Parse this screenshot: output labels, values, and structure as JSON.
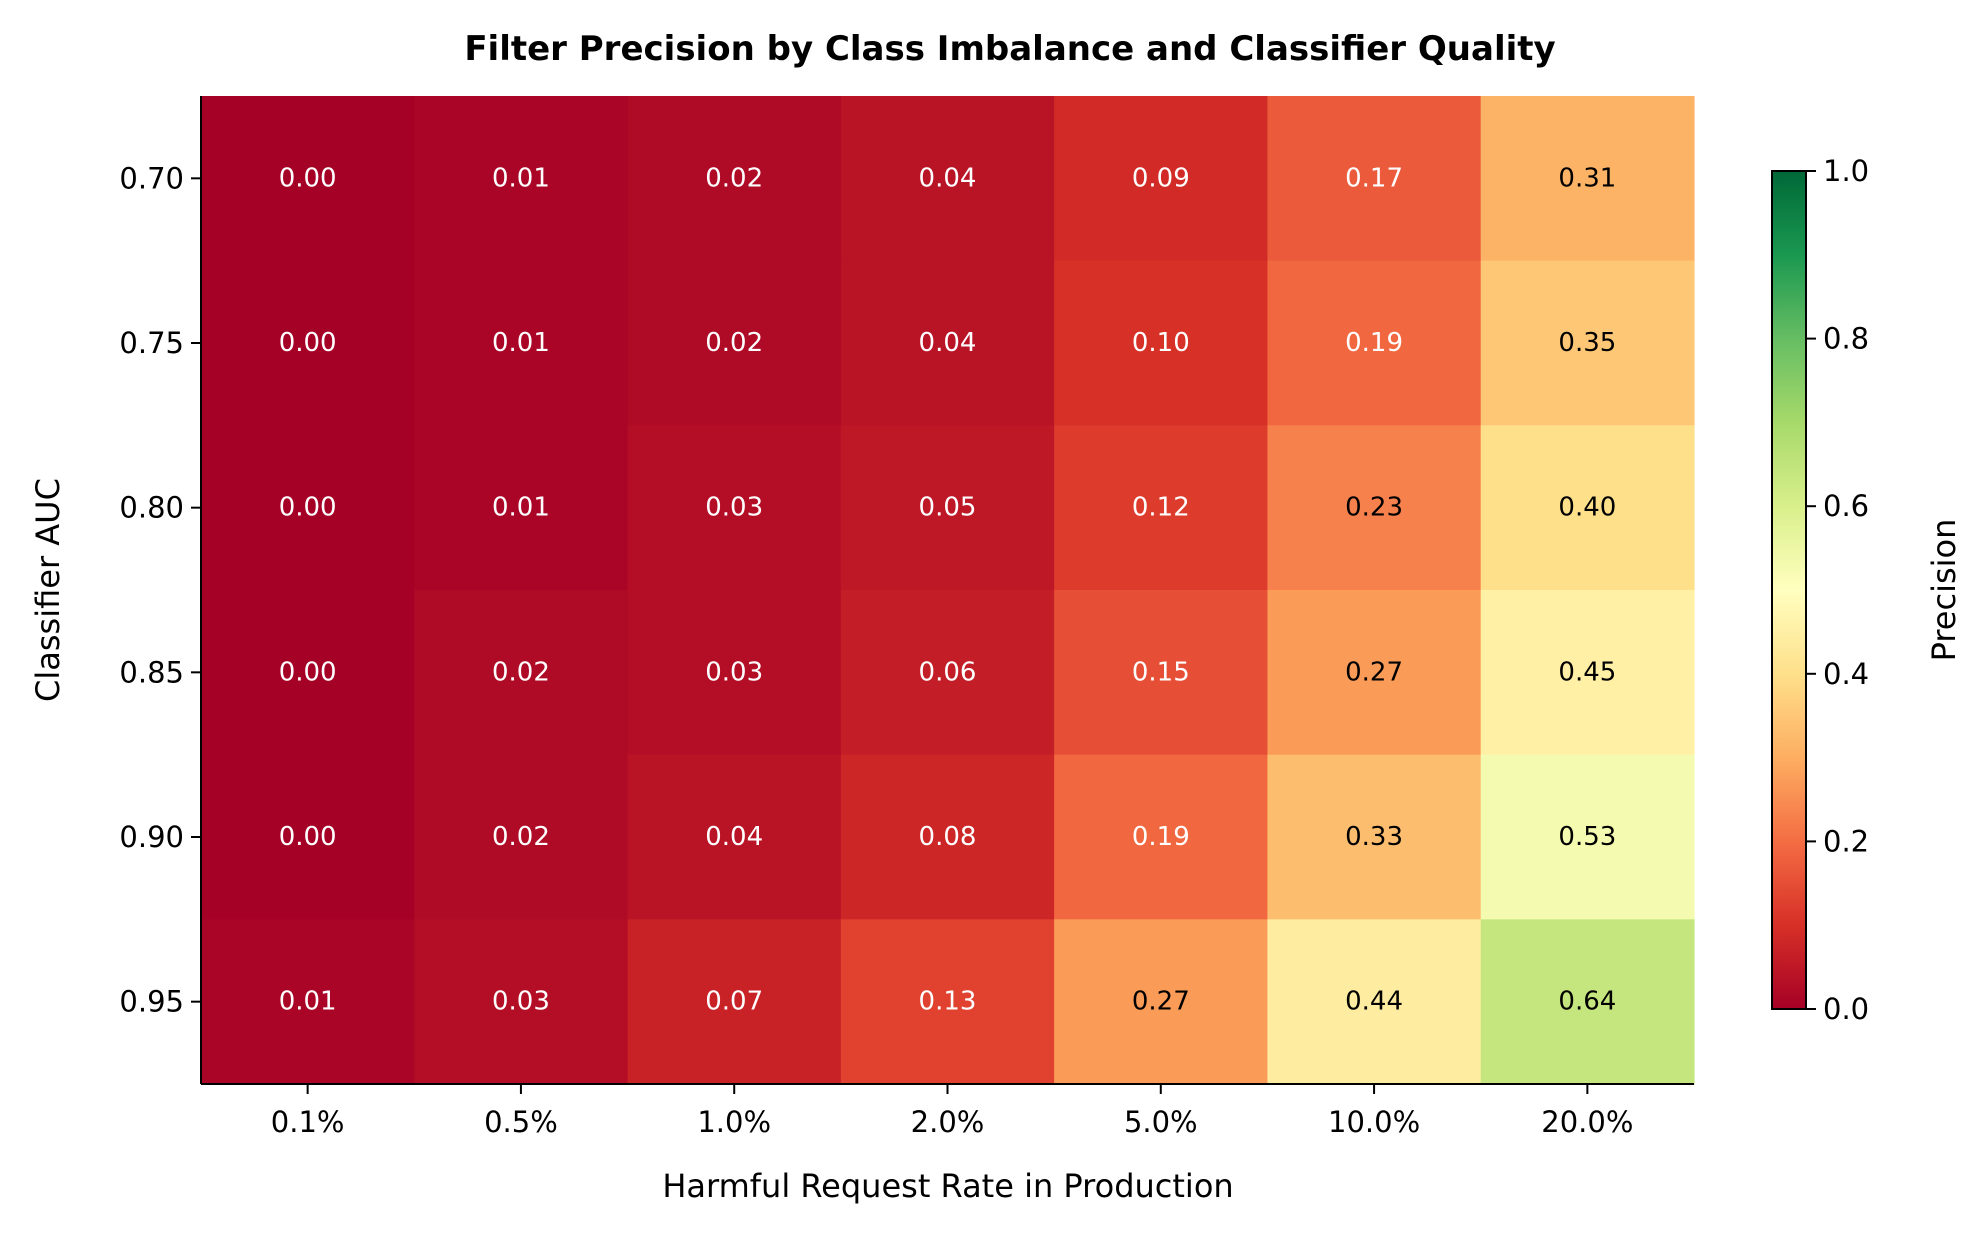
{
  "chart_data": {
    "type": "heatmap",
    "title": "Filter Precision by Class Imbalance and Classifier Quality",
    "xlabel": "Harmful Request Rate in Production",
    "ylabel": "Classifier AUC",
    "x_categories": [
      "0.1%",
      "0.5%",
      "1.0%",
      "2.0%",
      "5.0%",
      "10.0%",
      "20.0%"
    ],
    "y_categories": [
      "0.70",
      "0.75",
      "0.80",
      "0.85",
      "0.90",
      "0.95"
    ],
    "values": [
      [
        0.0,
        0.01,
        0.02,
        0.04,
        0.09,
        0.17,
        0.31
      ],
      [
        0.0,
        0.01,
        0.02,
        0.04,
        0.1,
        0.19,
        0.35
      ],
      [
        0.0,
        0.01,
        0.03,
        0.05,
        0.12,
        0.23,
        0.4
      ],
      [
        0.0,
        0.02,
        0.03,
        0.06,
        0.15,
        0.27,
        0.45
      ],
      [
        0.0,
        0.02,
        0.04,
        0.08,
        0.19,
        0.33,
        0.53
      ],
      [
        0.01,
        0.03,
        0.07,
        0.13,
        0.27,
        0.44,
        0.64
      ]
    ],
    "value_format_decimals": 2,
    "colormap": "RdYlGn",
    "colormap_stops": [
      "#a50026",
      "#d73027",
      "#f46d43",
      "#fdae61",
      "#fee08b",
      "#ffffbf",
      "#d9ef8b",
      "#a6d96a",
      "#66bd63",
      "#1a9850",
      "#006837"
    ],
    "colorbar": {
      "label": "Precision",
      "range": [
        0.0,
        1.0
      ],
      "ticks": [
        "0.0",
        "0.2",
        "0.4",
        "0.6",
        "0.8",
        "1.0"
      ]
    },
    "grid": false
  }
}
